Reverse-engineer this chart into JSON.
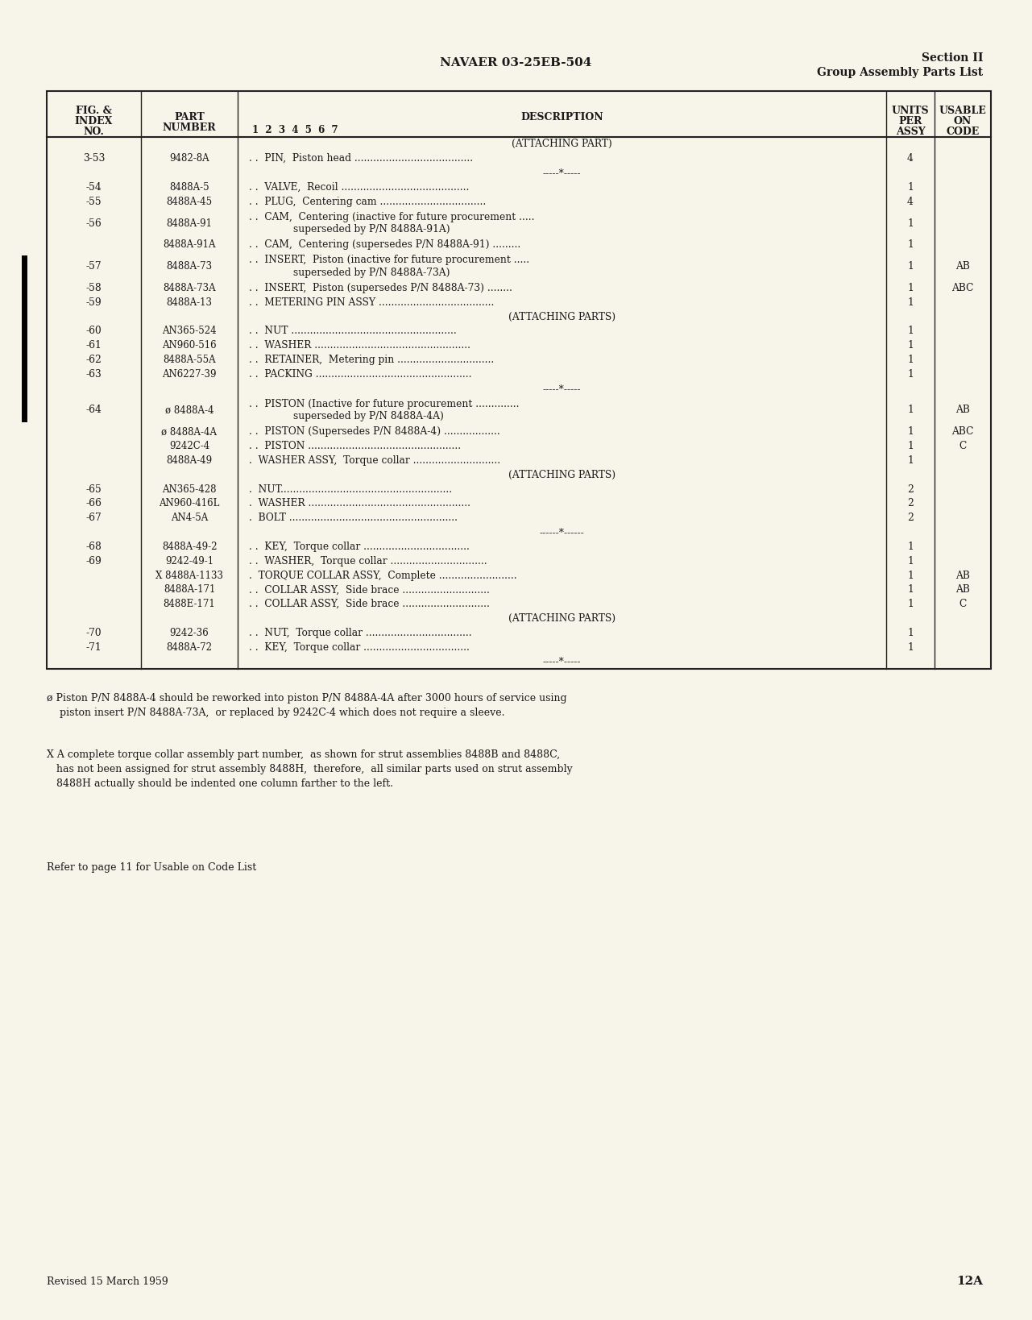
{
  "page_bg": "#f7f4e9",
  "header_center": "NAVAER 03-25EB-504",
  "header_right_line1": "Section II",
  "header_right_line2": "Group Assembly Parts List",
  "text_color": "#1a1a1a",
  "line_color": "#222222",
  "rows": [
    {
      "fig": "",
      "part": "",
      "desc": "(ATTACHING PART)",
      "units": "",
      "code": "",
      "two_line": false,
      "center": true,
      "separator": false
    },
    {
      "fig": "3-53",
      "part": "9482-8A",
      "desc": ". .  PIN,  Piston head ......................................",
      "units": "4",
      "code": "",
      "two_line": false,
      "center": false,
      "separator": false
    },
    {
      "fig": "",
      "part": "",
      "desc": "-----*-----",
      "units": "",
      "code": "",
      "two_line": false,
      "center": true,
      "separator": true
    },
    {
      "fig": "-54",
      "part": "8488A-5",
      "desc": ". .  VALVE,  Recoil .........................................",
      "units": "1",
      "code": "",
      "two_line": false,
      "center": false,
      "separator": false
    },
    {
      "fig": "-55",
      "part": "8488A-45",
      "desc": ". .  PLUG,  Centering cam ..................................",
      "units": "4",
      "code": "",
      "two_line": false,
      "center": false,
      "separator": false
    },
    {
      "fig": "-56",
      "part": "8488A-91",
      "desc": ". .  CAM,  Centering (inactive for future procurement .....",
      "desc2": "superseded by P/N 8488A-91A)",
      "units": "1",
      "code": "",
      "two_line": true,
      "center": false,
      "separator": false
    },
    {
      "fig": "",
      "part": "8488A-91A",
      "desc": ". .  CAM,  Centering (supersedes P/N 8488A-91) .........",
      "units": "1",
      "code": "",
      "two_line": false,
      "center": false,
      "separator": false
    },
    {
      "fig": "-57",
      "part": "8488A-73",
      "desc": ". .  INSERT,  Piston (inactive for future procurement .....",
      "desc2": "superseded by P/N 8488A-73A)",
      "units": "1",
      "code": "AB",
      "two_line": true,
      "center": false,
      "separator": false
    },
    {
      "fig": "-58",
      "part": "8488A-73A",
      "desc": ". .  INSERT,  Piston (supersedes P/N 8488A-73) ........",
      "units": "1",
      "code": "ABC",
      "two_line": false,
      "center": false,
      "separator": false
    },
    {
      "fig": "-59",
      "part": "8488A-13",
      "desc": ". .  METERING PIN ASSY .....................................",
      "units": "1",
      "code": "",
      "two_line": false,
      "center": false,
      "separator": false
    },
    {
      "fig": "",
      "part": "",
      "desc": "(ATTACHING PARTS)",
      "units": "",
      "code": "",
      "two_line": false,
      "center": true,
      "separator": false
    },
    {
      "fig": "-60",
      "part": "AN365-524",
      "desc": ". .  NUT .....................................................",
      "units": "1",
      "code": "",
      "two_line": false,
      "center": false,
      "separator": false
    },
    {
      "fig": "-61",
      "part": "AN960-516",
      "desc": ". .  WASHER ..................................................",
      "units": "1",
      "code": "",
      "two_line": false,
      "center": false,
      "separator": false
    },
    {
      "fig": "-62",
      "part": "8488A-55A",
      "desc": ". .  RETAINER,  Metering pin ...............................",
      "units": "1",
      "code": "",
      "two_line": false,
      "center": false,
      "separator": false
    },
    {
      "fig": "-63",
      "part": "AN6227-39",
      "desc": ". .  PACKING ..................................................",
      "units": "1",
      "code": "",
      "two_line": false,
      "center": false,
      "separator": false
    },
    {
      "fig": "",
      "part": "",
      "desc": "-----*-----",
      "units": "",
      "code": "",
      "two_line": false,
      "center": true,
      "separator": true
    },
    {
      "fig": "-64",
      "part": "ø 8488A-4",
      "desc": ". .  PISTON (Inactive for future procurement ..............",
      "desc2": "superseded by P/N 8488A-4A)",
      "units": "1",
      "code": "AB",
      "two_line": true,
      "center": false,
      "separator": false
    },
    {
      "fig": "",
      "part": "ø 8488A-4A",
      "desc": ". .  PISTON (Supersedes P/N 8488A-4) ..................",
      "units": "1",
      "code": "ABC",
      "two_line": false,
      "center": false,
      "separator": false
    },
    {
      "fig": "",
      "part": "9242C-4",
      "desc": ". .  PISTON .................................................",
      "units": "1",
      "code": "C",
      "two_line": false,
      "center": false,
      "separator": false
    },
    {
      "fig": "",
      "part": "8488A-49",
      "desc": ".  WASHER ASSY,  Torque collar ............................",
      "units": "1",
      "code": "",
      "two_line": false,
      "center": false,
      "separator": false
    },
    {
      "fig": "",
      "part": "",
      "desc": "(ATTACHING PARTS)",
      "units": "",
      "code": "",
      "two_line": false,
      "center": true,
      "separator": false
    },
    {
      "fig": "-65",
      "part": "AN365-428",
      "desc": ".  NUT.......................................................",
      "units": "2",
      "code": "",
      "two_line": false,
      "center": false,
      "separator": false
    },
    {
      "fig": "-66",
      "part": "AN960-416L",
      "desc": ".  WASHER ....................................................",
      "units": "2",
      "code": "",
      "two_line": false,
      "center": false,
      "separator": false
    },
    {
      "fig": "-67",
      "part": "AN4-5A",
      "desc": ".  BOLT ......................................................",
      "units": "2",
      "code": "",
      "two_line": false,
      "center": false,
      "separator": false
    },
    {
      "fig": "",
      "part": "",
      "desc": "------*------",
      "units": "",
      "code": "",
      "two_line": false,
      "center": true,
      "separator": true
    },
    {
      "fig": "-68",
      "part": "8488A-49-2",
      "desc": ". .  KEY,  Torque collar ..................................",
      "units": "1",
      "code": "",
      "two_line": false,
      "center": false,
      "separator": false
    },
    {
      "fig": "-69",
      "part": "9242-49-1",
      "desc": ". .  WASHER,  Torque collar ...............................",
      "units": "1",
      "code": "",
      "two_line": false,
      "center": false,
      "separator": false
    },
    {
      "fig": "",
      "part": "X 8488A-1133",
      "desc": ".  TORQUE COLLAR ASSY,  Complete .........................",
      "units": "1",
      "code": "AB",
      "two_line": false,
      "center": false,
      "separator": false
    },
    {
      "fig": "",
      "part": "8488A-171",
      "desc": ". .  COLLAR ASSY,  Side brace ............................",
      "units": "1",
      "code": "AB",
      "two_line": false,
      "center": false,
      "separator": false
    },
    {
      "fig": "",
      "part": "8488E-171",
      "desc": ". .  COLLAR ASSY,  Side brace ............................",
      "units": "1",
      "code": "C",
      "two_line": false,
      "center": false,
      "separator": false
    },
    {
      "fig": "",
      "part": "",
      "desc": "(ATTACHING PARTS)",
      "units": "",
      "code": "",
      "two_line": false,
      "center": true,
      "separator": false
    },
    {
      "fig": "-70",
      "part": "9242-36",
      "desc": ". .  NUT,  Torque collar ..................................",
      "units": "1",
      "code": "",
      "two_line": false,
      "center": false,
      "separator": false
    },
    {
      "fig": "-71",
      "part": "8488A-72",
      "desc": ". .  KEY,  Torque collar ..................................",
      "units": "1",
      "code": "",
      "two_line": false,
      "center": false,
      "separator": false
    },
    {
      "fig": "",
      "part": "",
      "desc": "-----*-----",
      "units": "",
      "code": "",
      "two_line": false,
      "center": true,
      "separator": true
    }
  ],
  "footnote1_sym": "ø",
  "footnote1_text": " Piston P/N 8488A-4 should be reworked into piston P/N 8488A-4A after 3000 hours of service using",
  "footnote1_line2": "    piston insert P/N 8488A-73A,  or replaced by 9242C-4 which does not require a sleeve.",
  "footnote2_sym": "X",
  "footnote2_text": " A complete torque collar assembly part number,  as shown for strut assemblies 8488B and 8488C,",
  "footnote2_line2": "   has not been assigned for strut assembly 8488H,  therefore,  all similar parts used on strut assembly",
  "footnote2_line3": "   8488H actually should be indented one column farther to the left.",
  "footnote3": "Refer to page 11 for Usable on Code List",
  "footer_left": "Revised 15 March 1959",
  "footer_right": "12A"
}
